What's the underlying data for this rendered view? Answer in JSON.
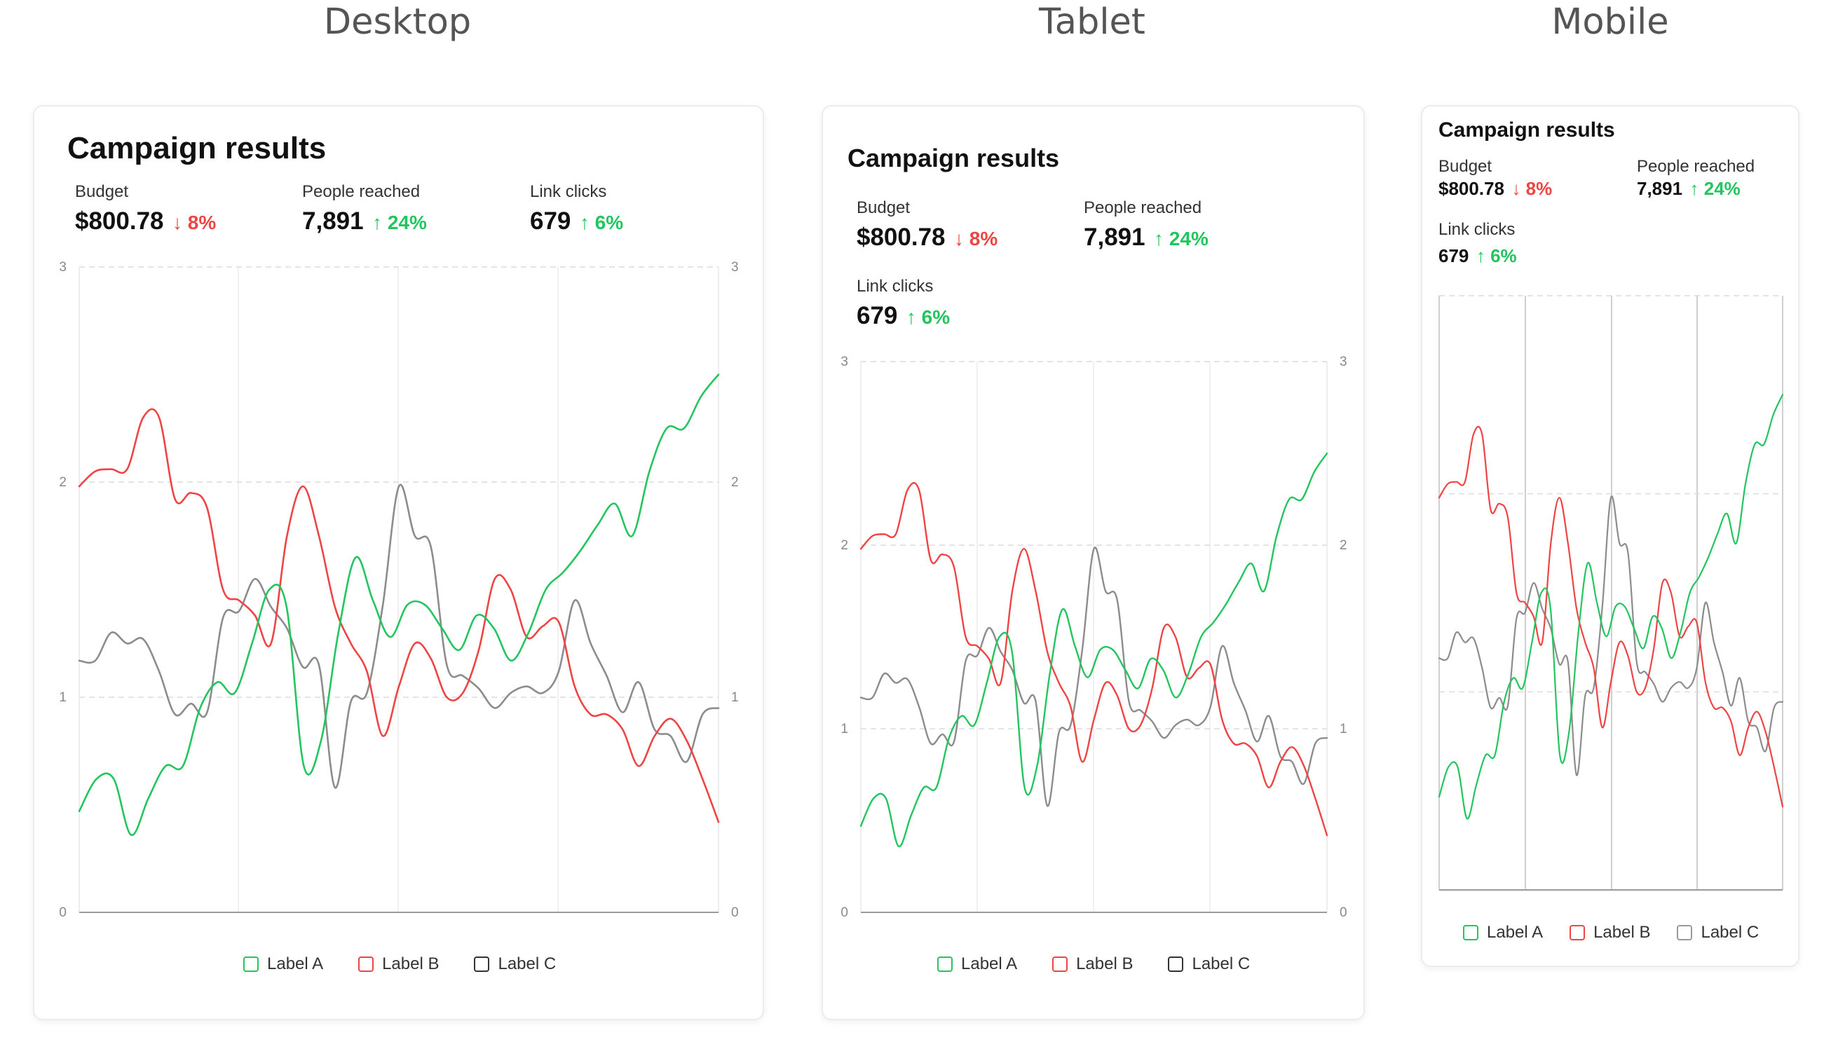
{
  "sections": {
    "desktop": "Desktop",
    "tablet": "Tablet",
    "mobile": "Mobile"
  },
  "card": {
    "title": "Campaign results",
    "stats": [
      {
        "label": "Budget",
        "value": "$800.78",
        "delta": "8%",
        "direction": "down"
      },
      {
        "label": "People reached",
        "value": "7,891",
        "delta": "24%",
        "direction": "up"
      },
      {
        "label": "Link clicks",
        "value": "679",
        "delta": "6%",
        "direction": "up"
      }
    ],
    "arrows": {
      "down": "↓",
      "up": "↑"
    }
  },
  "colors": {
    "label_a": "#22c55e",
    "label_b": "#ef4444",
    "label_c": "#8c8c8c"
  },
  "chart_data": {
    "type": "line",
    "curve": "smooth",
    "xlim": [
      0,
      48
    ],
    "ylim": [
      0,
      3
    ],
    "yticks": [
      "0",
      "1",
      "2",
      "3"
    ],
    "legend": [
      "Label A",
      "Label B",
      "Label C"
    ],
    "legend_position": "bottom-center",
    "series": [
      {
        "name": "Label A",
        "color": "#22c55e",
        "values": [
          0.47,
          0.62,
          0.62,
          0.36,
          0.53,
          0.68,
          0.68,
          0.95,
          1.07,
          1.02,
          1.25,
          1.5,
          1.42,
          0.68,
          0.8,
          1.3,
          1.65,
          1.45,
          1.28,
          1.43,
          1.43,
          1.32,
          1.22,
          1.38,
          1.32,
          1.17,
          1.3,
          1.5,
          1.58,
          1.68,
          1.8,
          1.9,
          1.75,
          2.05,
          2.25,
          2.25,
          2.4,
          2.5
        ]
      },
      {
        "name": "Label B",
        "color": "#ef4444",
        "values": [
          1.98,
          2.05,
          2.06,
          2.06,
          2.3,
          2.3,
          1.92,
          1.95,
          1.88,
          1.5,
          1.45,
          1.38,
          1.25,
          1.75,
          1.98,
          1.75,
          1.42,
          1.25,
          1.12,
          0.82,
          1.05,
          1.25,
          1.18,
          1.0,
          1.02,
          1.22,
          1.55,
          1.5,
          1.28,
          1.33,
          1.35,
          1.05,
          0.92,
          0.92,
          0.85,
          0.68,
          0.82,
          0.9,
          0.8,
          0.62,
          0.42
        ]
      },
      {
        "name": "Label C",
        "color": "#8c8c8c",
        "values": [
          1.17,
          1.17,
          1.3,
          1.25,
          1.27,
          1.12,
          0.92,
          0.97,
          0.93,
          1.37,
          1.4,
          1.55,
          1.42,
          1.32,
          1.14,
          1.15,
          0.58,
          0.98,
          1.02,
          1.43,
          1.98,
          1.75,
          1.7,
          1.15,
          1.1,
          1.04,
          0.95,
          1.02,
          1.05,
          1.02,
          1.12,
          1.45,
          1.25,
          1.1,
          0.93,
          1.07,
          0.85,
          0.82,
          0.7,
          0.92,
          0.95
        ]
      }
    ]
  }
}
